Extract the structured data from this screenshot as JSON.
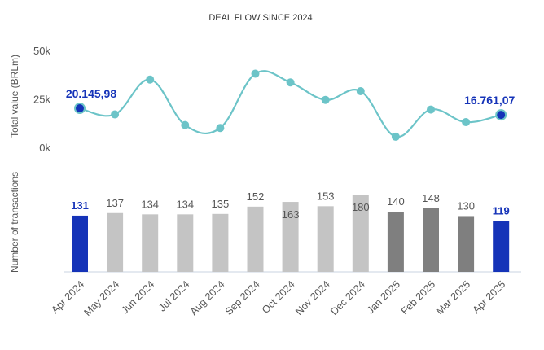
{
  "chart_data": {
    "type": "bar+line",
    "title": "DEAL FLOW SINCE 2024",
    "categories": [
      "Apr 2024",
      "May 2024",
      "Jun 2024",
      "Jul 2024",
      "Aug 2024",
      "Sep 2024",
      "Oct 2024",
      "Nov 2024",
      "Dec 2024",
      "Jan 2025",
      "Feb 2025",
      "Mar 2025",
      "Apr 2025"
    ],
    "line": {
      "ylabel": "Total value (BRLm)",
      "yticks": [
        "50k",
        "25k",
        "0k"
      ],
      "ylim": [
        0,
        50000
      ],
      "values": [
        20145.98,
        17000,
        35000,
        11500,
        10000,
        38000,
        33500,
        24500,
        29000,
        5500,
        19500,
        13000,
        16761.07
      ],
      "labels": [
        {
          "index": 0,
          "text": "20.145,98"
        },
        {
          "index": 12,
          "text": "16.761,07"
        }
      ],
      "color": "#6cc4c8",
      "highlight_color": "#1533b8"
    },
    "bars": {
      "ylabel": "Number of transactions",
      "ylim": [
        0,
        220
      ],
      "values": [
        131,
        137,
        134,
        134,
        135,
        152,
        163,
        153,
        180,
        140,
        148,
        130,
        119
      ],
      "labels": [
        "131",
        "137",
        "134",
        "134",
        "135",
        "152",
        "163",
        "153",
        "180",
        "140",
        "148",
        "130",
        "119"
      ],
      "colors": [
        "#1533b8",
        "#c4c4c4",
        "#c4c4c4",
        "#c4c4c4",
        "#c4c4c4",
        "#c4c4c4",
        "#c4c4c4",
        "#c4c4c4",
        "#c4c4c4",
        "#7f7f7f",
        "#7f7f7f",
        "#7f7f7f",
        "#1533b8"
      ],
      "highlighted": [
        0,
        12
      ]
    },
    "legend": "none",
    "grid": false
  }
}
